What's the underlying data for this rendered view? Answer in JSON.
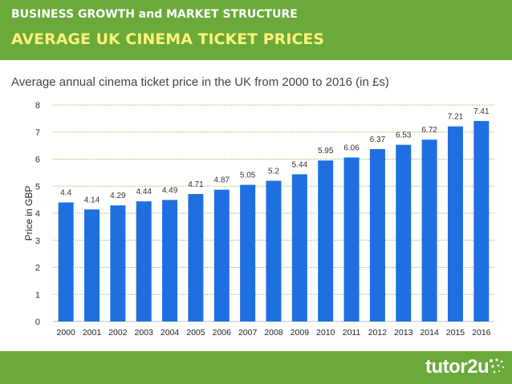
{
  "header": {
    "kicker": "BUSINESS GROWTH and MARKET STRUCTURE",
    "headline": "AVERAGE UK CINEMA TICKET PRICES"
  },
  "subtitle": "Average annual cinema ticket price in the UK from 2000 to 2016 (in £s)",
  "colors": {
    "header_green": "#6aaa3a",
    "headline_yellow": "#fff27a",
    "bar_blue": "#1f6fe0"
  },
  "footer": {
    "brand": "tutor2u",
    "logo_icon": "dots-logo-icon"
  },
  "chart_data": {
    "type": "bar",
    "title": "Average annual cinema ticket price in the UK from 2000 to 2016 (in £s)",
    "xlabel": "",
    "ylabel": "Price in GBP",
    "ylim": [
      0,
      8
    ],
    "yticks": [
      0,
      1,
      2,
      3,
      4,
      5,
      6,
      7,
      8
    ],
    "grid": true,
    "categories": [
      "2000",
      "2001",
      "2002",
      "2003",
      "2004",
      "2005",
      "2006",
      "2007",
      "2008",
      "2009",
      "2010",
      "2011",
      "2012",
      "2013",
      "2014",
      "2015",
      "2016"
    ],
    "values": [
      4.4,
      4.14,
      4.29,
      4.44,
      4.49,
      4.71,
      4.87,
      5.05,
      5.2,
      5.44,
      5.95,
      6.06,
      6.37,
      6.53,
      6.72,
      7.21,
      7.41
    ],
    "value_labels": [
      "4.4",
      "4.14",
      "4.29",
      "4.44",
      "4.49",
      "4.71",
      "4.87",
      "5.05",
      "5.2",
      "5.44",
      "5.95",
      "6.06",
      "6.37",
      "6.53",
      "6.72",
      "7.21",
      "7.41"
    ]
  }
}
